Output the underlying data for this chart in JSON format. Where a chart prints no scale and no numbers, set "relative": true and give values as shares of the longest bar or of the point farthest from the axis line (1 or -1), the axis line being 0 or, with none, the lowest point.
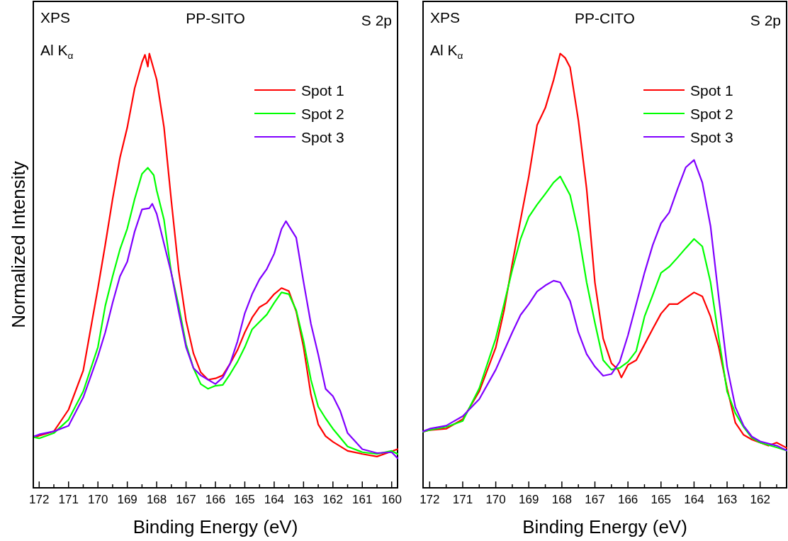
{
  "chart_data": [
    {
      "type": "line",
      "title": "PP-SITO",
      "xlabel": "Binding Energy (eV)",
      "ylabel": "Normalized Intensity",
      "annotations": [
        "XPS",
        "Al K$_{α}$",
        "S 2p"
      ],
      "relative": true,
      "legend": "top right",
      "xlim": [
        172.2,
        159.8
      ],
      "xticks": [
        172,
        {
          "value": 171.5,
          "label": null
        },
        171,
        {
          "value": 170.5,
          "label": null
        },
        170,
        {
          "value": 169.5,
          "label": null
        },
        169,
        {
          "value": 168.5,
          "label": null
        },
        168,
        {
          "value": 167.5,
          "label": null
        },
        167,
        {
          "value": 166.5,
          "label": null
        },
        166,
        {
          "value": 165.5,
          "label": null
        },
        165,
        {
          "value": 164.5,
          "label": null
        },
        164,
        {
          "value": 163.5,
          "label": null
        },
        163,
        {
          "value": 162.5,
          "label": null
        },
        162,
        {
          "value": 161.5,
          "label": null
        },
        161,
        {
          "value": 160.5,
          "label": null
        },
        160
      ],
      "series": [
        {
          "name": "Spot 1",
          "color": "#ff0000",
          "x": [
            172.15,
            172,
            171.5,
            171,
            170.5,
            170,
            169.75,
            169.5,
            169.25,
            169,
            168.75,
            168.5,
            168.4,
            168.3,
            168.25,
            168,
            167.75,
            167.5,
            167.25,
            167,
            166.75,
            166.5,
            166.25,
            166,
            165.75,
            165.5,
            165.25,
            165,
            164.75,
            164.5,
            164.25,
            164,
            163.75,
            163.5,
            163.25,
            163,
            162.75,
            162.5,
            162.25,
            162,
            161.5,
            161,
            160.5,
            160,
            159.8
          ],
          "values": [
            0.116,
            0.12,
            0.13,
            0.18,
            0.27,
            0.46,
            0.56,
            0.665,
            0.76,
            0.83,
            0.92,
            0.98,
            0.997,
            0.97,
            1.0,
            0.94,
            0.83,
            0.66,
            0.5,
            0.385,
            0.31,
            0.266,
            0.249,
            0.252,
            0.259,
            0.286,
            0.317,
            0.358,
            0.392,
            0.416,
            0.426,
            0.446,
            0.46,
            0.453,
            0.406,
            0.324,
            0.215,
            0.146,
            0.119,
            0.106,
            0.085,
            0.078,
            0.072,
            0.084,
            0.089
          ]
        },
        {
          "name": "Spot 2",
          "color": "#00ff00",
          "x": [
            172.15,
            172,
            171.5,
            171,
            170.5,
            170,
            169.75,
            169.5,
            169.25,
            169,
            168.75,
            168.5,
            168.3,
            168.1,
            168,
            167.75,
            167.5,
            167.25,
            167,
            166.75,
            166.5,
            166.25,
            166,
            165.75,
            165.5,
            165.25,
            165,
            164.75,
            164.5,
            164.25,
            164,
            163.75,
            163.5,
            163.25,
            163,
            162.75,
            162.5,
            162.25,
            162,
            161.5,
            161,
            160.5,
            160,
            159.8
          ],
          "values": [
            0.116,
            0.114,
            0.126,
            0.157,
            0.222,
            0.324,
            0.419,
            0.487,
            0.549,
            0.597,
            0.665,
            0.723,
            0.737,
            0.72,
            0.685,
            0.617,
            0.494,
            0.419,
            0.331,
            0.276,
            0.239,
            0.228,
            0.235,
            0.237,
            0.262,
            0.29,
            0.324,
            0.365,
            0.382,
            0.399,
            0.426,
            0.45,
            0.446,
            0.409,
            0.338,
            0.249,
            0.187,
            0.16,
            0.136,
            0.095,
            0.082,
            0.078,
            0.085,
            0.078
          ]
        },
        {
          "name": "Spot 3",
          "color": "#8000ff",
          "x": [
            172.15,
            172,
            171.5,
            171,
            170.5,
            170,
            169.75,
            169.5,
            169.25,
            169,
            168.75,
            168.5,
            168.25,
            168.15,
            168,
            167.75,
            167.5,
            167.25,
            167,
            166.75,
            166.5,
            166.25,
            166,
            165.75,
            165.5,
            165.25,
            165,
            164.75,
            164.5,
            164.25,
            164,
            163.75,
            163.6,
            163.5,
            163.25,
            163,
            162.75,
            162.5,
            162.25,
            162,
            161.75,
            161.5,
            161,
            160.5,
            160,
            159.8
          ],
          "values": [
            0.119,
            0.123,
            0.13,
            0.143,
            0.208,
            0.303,
            0.358,
            0.426,
            0.487,
            0.521,
            0.59,
            0.641,
            0.644,
            0.654,
            0.631,
            0.562,
            0.494,
            0.406,
            0.324,
            0.276,
            0.259,
            0.249,
            0.239,
            0.254,
            0.286,
            0.337,
            0.402,
            0.446,
            0.48,
            0.504,
            0.539,
            0.596,
            0.614,
            0.603,
            0.576,
            0.474,
            0.378,
            0.307,
            0.228,
            0.211,
            0.177,
            0.126,
            0.089,
            0.08,
            0.082,
            0.068
          ]
        }
      ]
    },
    {
      "type": "line",
      "title": "PP-CITO",
      "xlabel": "Binding Energy (eV)",
      "annotations": [
        "XPS",
        "Al K$_{α}$",
        "S 2p"
      ],
      "relative": true,
      "legend": "top right",
      "xlim": [
        172.2,
        161.2
      ],
      "xticks": [
        172,
        {
          "value": 171.5,
          "label": null
        },
        171,
        {
          "value": 170.5,
          "label": null
        },
        170,
        {
          "value": 169.5,
          "label": null
        },
        169,
        {
          "value": 168.5,
          "label": null
        },
        168,
        {
          "value": 167.5,
          "label": null
        },
        167,
        {
          "value": 166.5,
          "label": null
        },
        166,
        {
          "value": 165.5,
          "label": null
        },
        165,
        {
          "value": 164.5,
          "label": null
        },
        164,
        {
          "value": 163.5,
          "label": null
        },
        163,
        {
          "value": 162.5,
          "label": null
        },
        162,
        {
          "value": 161.5,
          "label": null
        }
      ],
      "series": [
        {
          "name": "Spot 1",
          "color": "#ff0000",
          "x": [
            172.2,
            172,
            171.5,
            171,
            170.5,
            170,
            169.75,
            169.5,
            169.25,
            169,
            168.75,
            168.5,
            168.25,
            168.05,
            167.9,
            167.75,
            167.5,
            167.25,
            167,
            166.75,
            166.5,
            166.3,
            166.2,
            166,
            165.75,
            165.5,
            165.25,
            165,
            164.75,
            164.5,
            164.25,
            164,
            163.75,
            163.5,
            163.25,
            163,
            162.75,
            162.5,
            162.25,
            162,
            161.75,
            161.5,
            161.2
          ],
          "values": [
            0.129,
            0.133,
            0.136,
            0.158,
            0.222,
            0.323,
            0.408,
            0.516,
            0.617,
            0.717,
            0.835,
            0.875,
            0.939,
            1.0,
            0.99,
            0.968,
            0.846,
            0.688,
            0.473,
            0.344,
            0.287,
            0.272,
            0.254,
            0.283,
            0.294,
            0.33,
            0.366,
            0.401,
            0.423,
            0.423,
            0.437,
            0.45,
            0.441,
            0.394,
            0.323,
            0.229,
            0.15,
            0.122,
            0.111,
            0.104,
            0.097,
            0.104,
            0.092
          ]
        },
        {
          "name": "Spot 2",
          "color": "#00ff00",
          "x": [
            172.2,
            172,
            171.5,
            171,
            170.5,
            170,
            169.75,
            169.5,
            169.25,
            169,
            168.75,
            168.5,
            168.25,
            168.05,
            167.75,
            167.5,
            167.25,
            167,
            166.75,
            166.5,
            166.25,
            166,
            165.75,
            165.5,
            165.25,
            165,
            164.75,
            164.5,
            164.25,
            164,
            163.75,
            163.5,
            163.25,
            163,
            162.75,
            162.5,
            162.25,
            162,
            161.5,
            161.2
          ],
          "values": [
            0.129,
            0.133,
            0.14,
            0.154,
            0.229,
            0.344,
            0.423,
            0.502,
            0.573,
            0.624,
            0.652,
            0.677,
            0.703,
            0.717,
            0.674,
            0.588,
            0.473,
            0.38,
            0.294,
            0.272,
            0.276,
            0.29,
            0.315,
            0.394,
            0.444,
            0.495,
            0.509,
            0.53,
            0.552,
            0.573,
            0.556,
            0.473,
            0.344,
            0.222,
            0.172,
            0.14,
            0.115,
            0.104,
            0.093,
            0.086
          ]
        },
        {
          "name": "Spot 3",
          "color": "#8000ff",
          "x": [
            172.2,
            172,
            171.5,
            171,
            170.5,
            170,
            169.75,
            169.5,
            169.25,
            169,
            168.75,
            168.5,
            168.25,
            168.05,
            167.75,
            167.5,
            167.25,
            167,
            166.75,
            166.5,
            166.25,
            166,
            165.75,
            165.5,
            165.25,
            165,
            164.75,
            164.5,
            164.25,
            164,
            163.75,
            163.5,
            163.25,
            163,
            162.75,
            162.5,
            162.25,
            162,
            161.5,
            161.2
          ],
          "values": [
            0.13,
            0.136,
            0.143,
            0.165,
            0.204,
            0.272,
            0.315,
            0.358,
            0.398,
            0.423,
            0.452,
            0.466,
            0.477,
            0.473,
            0.43,
            0.358,
            0.308,
            0.279,
            0.258,
            0.262,
            0.29,
            0.351,
            0.423,
            0.495,
            0.559,
            0.609,
            0.634,
            0.688,
            0.738,
            0.755,
            0.703,
            0.602,
            0.437,
            0.279,
            0.186,
            0.143,
            0.118,
            0.107,
            0.097,
            0.086
          ]
        }
      ]
    }
  ]
}
